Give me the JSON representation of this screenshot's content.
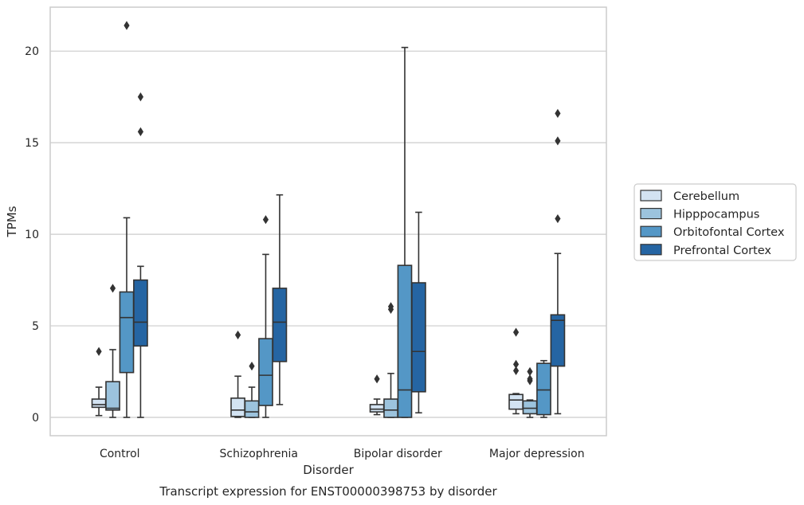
{
  "chart_data": {
    "type": "boxplot",
    "title": "",
    "caption": "Transcript expression for ENST00000398753 by disorder",
    "xlabel": "Disorder",
    "ylabel": "TPMs",
    "ylim": [
      -1,
      22.4
    ],
    "yticks": [
      0,
      5,
      10,
      15,
      20
    ],
    "grid": true,
    "legend_position": "right",
    "categories": [
      "Control",
      "Schizophrenia",
      "Bipolar disorder",
      "Major depression"
    ],
    "series": [
      {
        "name": "Cerebellum",
        "color": "#d3e3f2",
        "boxes": [
          {
            "whislo": 0.1,
            "q1": 0.55,
            "med": 0.7,
            "q3": 1.0,
            "whishi": 1.65,
            "fliers": [
              3.6
            ]
          },
          {
            "whislo": 0.0,
            "q1": 0.05,
            "med": 0.4,
            "q3": 1.05,
            "whishi": 2.25,
            "fliers": [
              4.5
            ]
          },
          {
            "whislo": 0.15,
            "q1": 0.3,
            "med": 0.45,
            "q3": 0.7,
            "whishi": 1.0,
            "fliers": [
              2.1
            ]
          },
          {
            "whislo": 0.2,
            "q1": 0.45,
            "med": 0.95,
            "q3": 1.25,
            "whishi": 1.3,
            "fliers": [
              2.55,
              2.9,
              4.65
            ]
          }
        ]
      },
      {
        "name": "Hipppocampus",
        "color": "#9cc3dd",
        "boxes": [
          {
            "whislo": 0.0,
            "q1": 0.4,
            "med": 0.5,
            "q3": 1.95,
            "whishi": 3.7,
            "fliers": [
              7.05
            ]
          },
          {
            "whislo": 0.0,
            "q1": 0.0,
            "med": 0.3,
            "q3": 0.9,
            "whishi": 1.65,
            "fliers": [
              2.8
            ]
          },
          {
            "whislo": 0.0,
            "q1": 0.0,
            "med": 0.4,
            "q3": 1.0,
            "whishi": 2.4,
            "fliers": [
              5.9,
              6.05
            ]
          },
          {
            "whislo": 0.0,
            "q1": 0.2,
            "med": 0.5,
            "q3": 0.9,
            "whishi": 0.95,
            "fliers": [
              2.0,
              2.1,
              2.5
            ]
          }
        ]
      },
      {
        "name": "Orbitofontal Cortex",
        "color": "#5497c6",
        "boxes": [
          {
            "whislo": 0.0,
            "q1": 2.45,
            "med": 5.45,
            "q3": 6.85,
            "whishi": 10.9,
            "fliers": [
              21.4
            ]
          },
          {
            "whislo": 0.0,
            "q1": 0.65,
            "med": 2.3,
            "q3": 4.3,
            "whishi": 8.9,
            "fliers": [
              10.8
            ]
          },
          {
            "whislo": 0.0,
            "q1": 0.0,
            "med": 1.5,
            "q3": 8.3,
            "whishi": 20.2,
            "fliers": []
          },
          {
            "whislo": 0.0,
            "q1": 0.15,
            "med": 1.5,
            "q3": 2.95,
            "whishi": 3.1,
            "fliers": []
          }
        ]
      },
      {
        "name": "Prefrontal Cortex",
        "color": "#2565a3",
        "boxes": [
          {
            "whislo": 0.0,
            "q1": 3.9,
            "med": 5.2,
            "q3": 7.5,
            "whishi": 8.25,
            "fliers": [
              15.6,
              17.5
            ]
          },
          {
            "whislo": 0.7,
            "q1": 3.05,
            "med": 5.2,
            "q3": 7.05,
            "whishi": 12.15,
            "fliers": []
          },
          {
            "whislo": 0.25,
            "q1": 1.4,
            "med": 3.6,
            "q3": 7.35,
            "whishi": 11.2,
            "fliers": []
          },
          {
            "whislo": 0.2,
            "q1": 2.8,
            "med": 5.3,
            "q3": 5.6,
            "whishi": 8.95,
            "fliers": [
              10.85,
              15.1,
              16.6
            ]
          }
        ]
      }
    ]
  }
}
